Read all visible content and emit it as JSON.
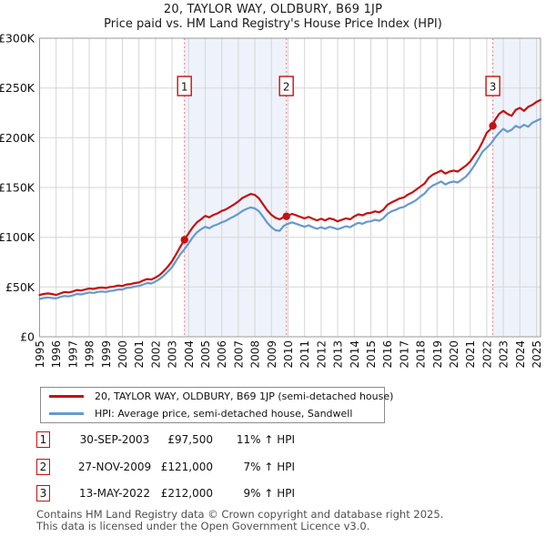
{
  "title": "20, TAYLOR WAY, OLDBURY, B69 1JP",
  "subtitle": "Price paid vs. HM Land Registry's House Price Index (HPI)",
  "chart_data": {
    "type": "line",
    "xlim": [
      1995,
      2025.25
    ],
    "ylim": [
      0,
      300
    ],
    "x_start": 1995,
    "x_step": 0.25,
    "x_ticks": [
      1995,
      1996,
      1997,
      1998,
      1999,
      2000,
      2001,
      2002,
      2003,
      2004,
      2005,
      2006,
      2007,
      2008,
      2009,
      2010,
      2011,
      2012,
      2013,
      2014,
      2015,
      2016,
      2017,
      2018,
      2019,
      2020,
      2021,
      2022,
      2023,
      2024,
      2025
    ],
    "y_ticks": [
      {
        "v": 0,
        "label": "£0"
      },
      {
        "v": 50,
        "label": "£50K"
      },
      {
        "v": 100,
        "label": "£100K"
      },
      {
        "v": 150,
        "label": "£150K"
      },
      {
        "v": 200,
        "label": "£200K"
      },
      {
        "v": 250,
        "label": "£250K"
      },
      {
        "v": 300,
        "label": "£300K"
      }
    ],
    "grid": true,
    "legend_position": "bottom",
    "units": "GBP thousands",
    "series": [
      {
        "name": "20, TAYLOR WAY, OLDBURY, B69 1JP (semi-detached house)",
        "color": "#c41111",
        "values": [
          42,
          43,
          43.5,
          43,
          42,
          43.5,
          45,
          44.5,
          45.5,
          47,
          46.5,
          47.5,
          48.5,
          48,
          49,
          49.5,
          49,
          50,
          50.5,
          51.5,
          51,
          52.5,
          53,
          54,
          54.5,
          56.5,
          58,
          57.5,
          59.5,
          62,
          66,
          70.5,
          76,
          83,
          90.5,
          97.5,
          104,
          110,
          115,
          118,
          121.5,
          120,
          122.5,
          124,
          126.5,
          128,
          130.5,
          133,
          136,
          139.5,
          141.5,
          143.5,
          142.5,
          139,
          133,
          127,
          122.5,
          119.5,
          118,
          120.5,
          122,
          123.5,
          122,
          120.5,
          119,
          120.5,
          118.5,
          117,
          118.5,
          117,
          119,
          118,
          116,
          117.5,
          119,
          118,
          121,
          123,
          122,
          124,
          124.5,
          126,
          125,
          127.5,
          132.5,
          135,
          137,
          139,
          140,
          143,
          145,
          148,
          151,
          154,
          160,
          163,
          165,
          167,
          164,
          166,
          167,
          166,
          169,
          172,
          176,
          182,
          188,
          196,
          205,
          209,
          218,
          224,
          227,
          224,
          222,
          228,
          230,
          227,
          231,
          233,
          236,
          238
        ]
      },
      {
        "name": "HPI: Average price, semi-detached house, Sandwell",
        "color": "#6699cc",
        "values": [
          38,
          39,
          39.5,
          39,
          38.5,
          40,
          41,
          40.5,
          41.5,
          43,
          42.5,
          43.5,
          44.5,
          44,
          45,
          45.5,
          45,
          46,
          46.5,
          47.5,
          47.5,
          49,
          49.5,
          50.5,
          51,
          52.5,
          54,
          53.5,
          55.5,
          58,
          61.5,
          65.5,
          70,
          76.5,
          83,
          88,
          94,
          100,
          105,
          108,
          110.5,
          109,
          111.5,
          113,
          115,
          116.5,
          119,
          121,
          123.5,
          126.5,
          128.5,
          130,
          129,
          126,
          120.5,
          114.5,
          110,
          107,
          106.5,
          111.5,
          113.5,
          115,
          113.5,
          112,
          110.5,
          112,
          110,
          108.5,
          110,
          108.5,
          110.5,
          109.5,
          108,
          109.5,
          111,
          110,
          112.5,
          114.5,
          113.5,
          115.5,
          116,
          117.5,
          116.5,
          119,
          123.5,
          126,
          127.5,
          129.5,
          130.5,
          133,
          135,
          137.5,
          141,
          144,
          149,
          152,
          154,
          156,
          153,
          155,
          156,
          155,
          158,
          161,
          166,
          172,
          179,
          186,
          190,
          194,
          200,
          205,
          209,
          206,
          208,
          212,
          210,
          213,
          211,
          215,
          217,
          219
        ]
      }
    ],
    "sales": [
      {
        "n": "1",
        "x": 2003.75,
        "y": 97.5
      },
      {
        "n": "2",
        "x": 2009.9,
        "y": 121
      },
      {
        "n": "3",
        "x": 2022.37,
        "y": 212
      }
    ],
    "bands": [
      [
        2003.75,
        2009.9
      ],
      [
        2022.37,
        2025.25
      ]
    ],
    "colors": {
      "band": "#eef2fb",
      "grid": "#d6d6d6",
      "border": "#999999",
      "sale_line": "#ee8888",
      "sale_box_border": "#c41111",
      "sale_box_text": "#111111",
      "axis_text": "#111111"
    }
  },
  "legend": {
    "items": [
      {
        "label": "20, TAYLOR WAY, OLDBURY, B69 1JP (semi-detached house)",
        "color": "#c41111"
      },
      {
        "label": "HPI: Average price, semi-detached house, Sandwell",
        "color": "#6699cc"
      }
    ]
  },
  "table": {
    "rows": [
      {
        "n": "1",
        "date": "30-SEP-2003",
        "price": "£97,500",
        "hpi": "11% ↑ HPI"
      },
      {
        "n": "2",
        "date": "27-NOV-2009",
        "price": "£121,000",
        "hpi": "7% ↑ HPI"
      },
      {
        "n": "3",
        "date": "13-MAY-2022",
        "price": "£212,000",
        "hpi": "9% ↑ HPI"
      }
    ]
  },
  "footer": {
    "line1": "Contains HM Land Registry data © Crown copyright and database right 2025.",
    "line2": "This data is licensed under the Open Government Licence v3.0."
  }
}
